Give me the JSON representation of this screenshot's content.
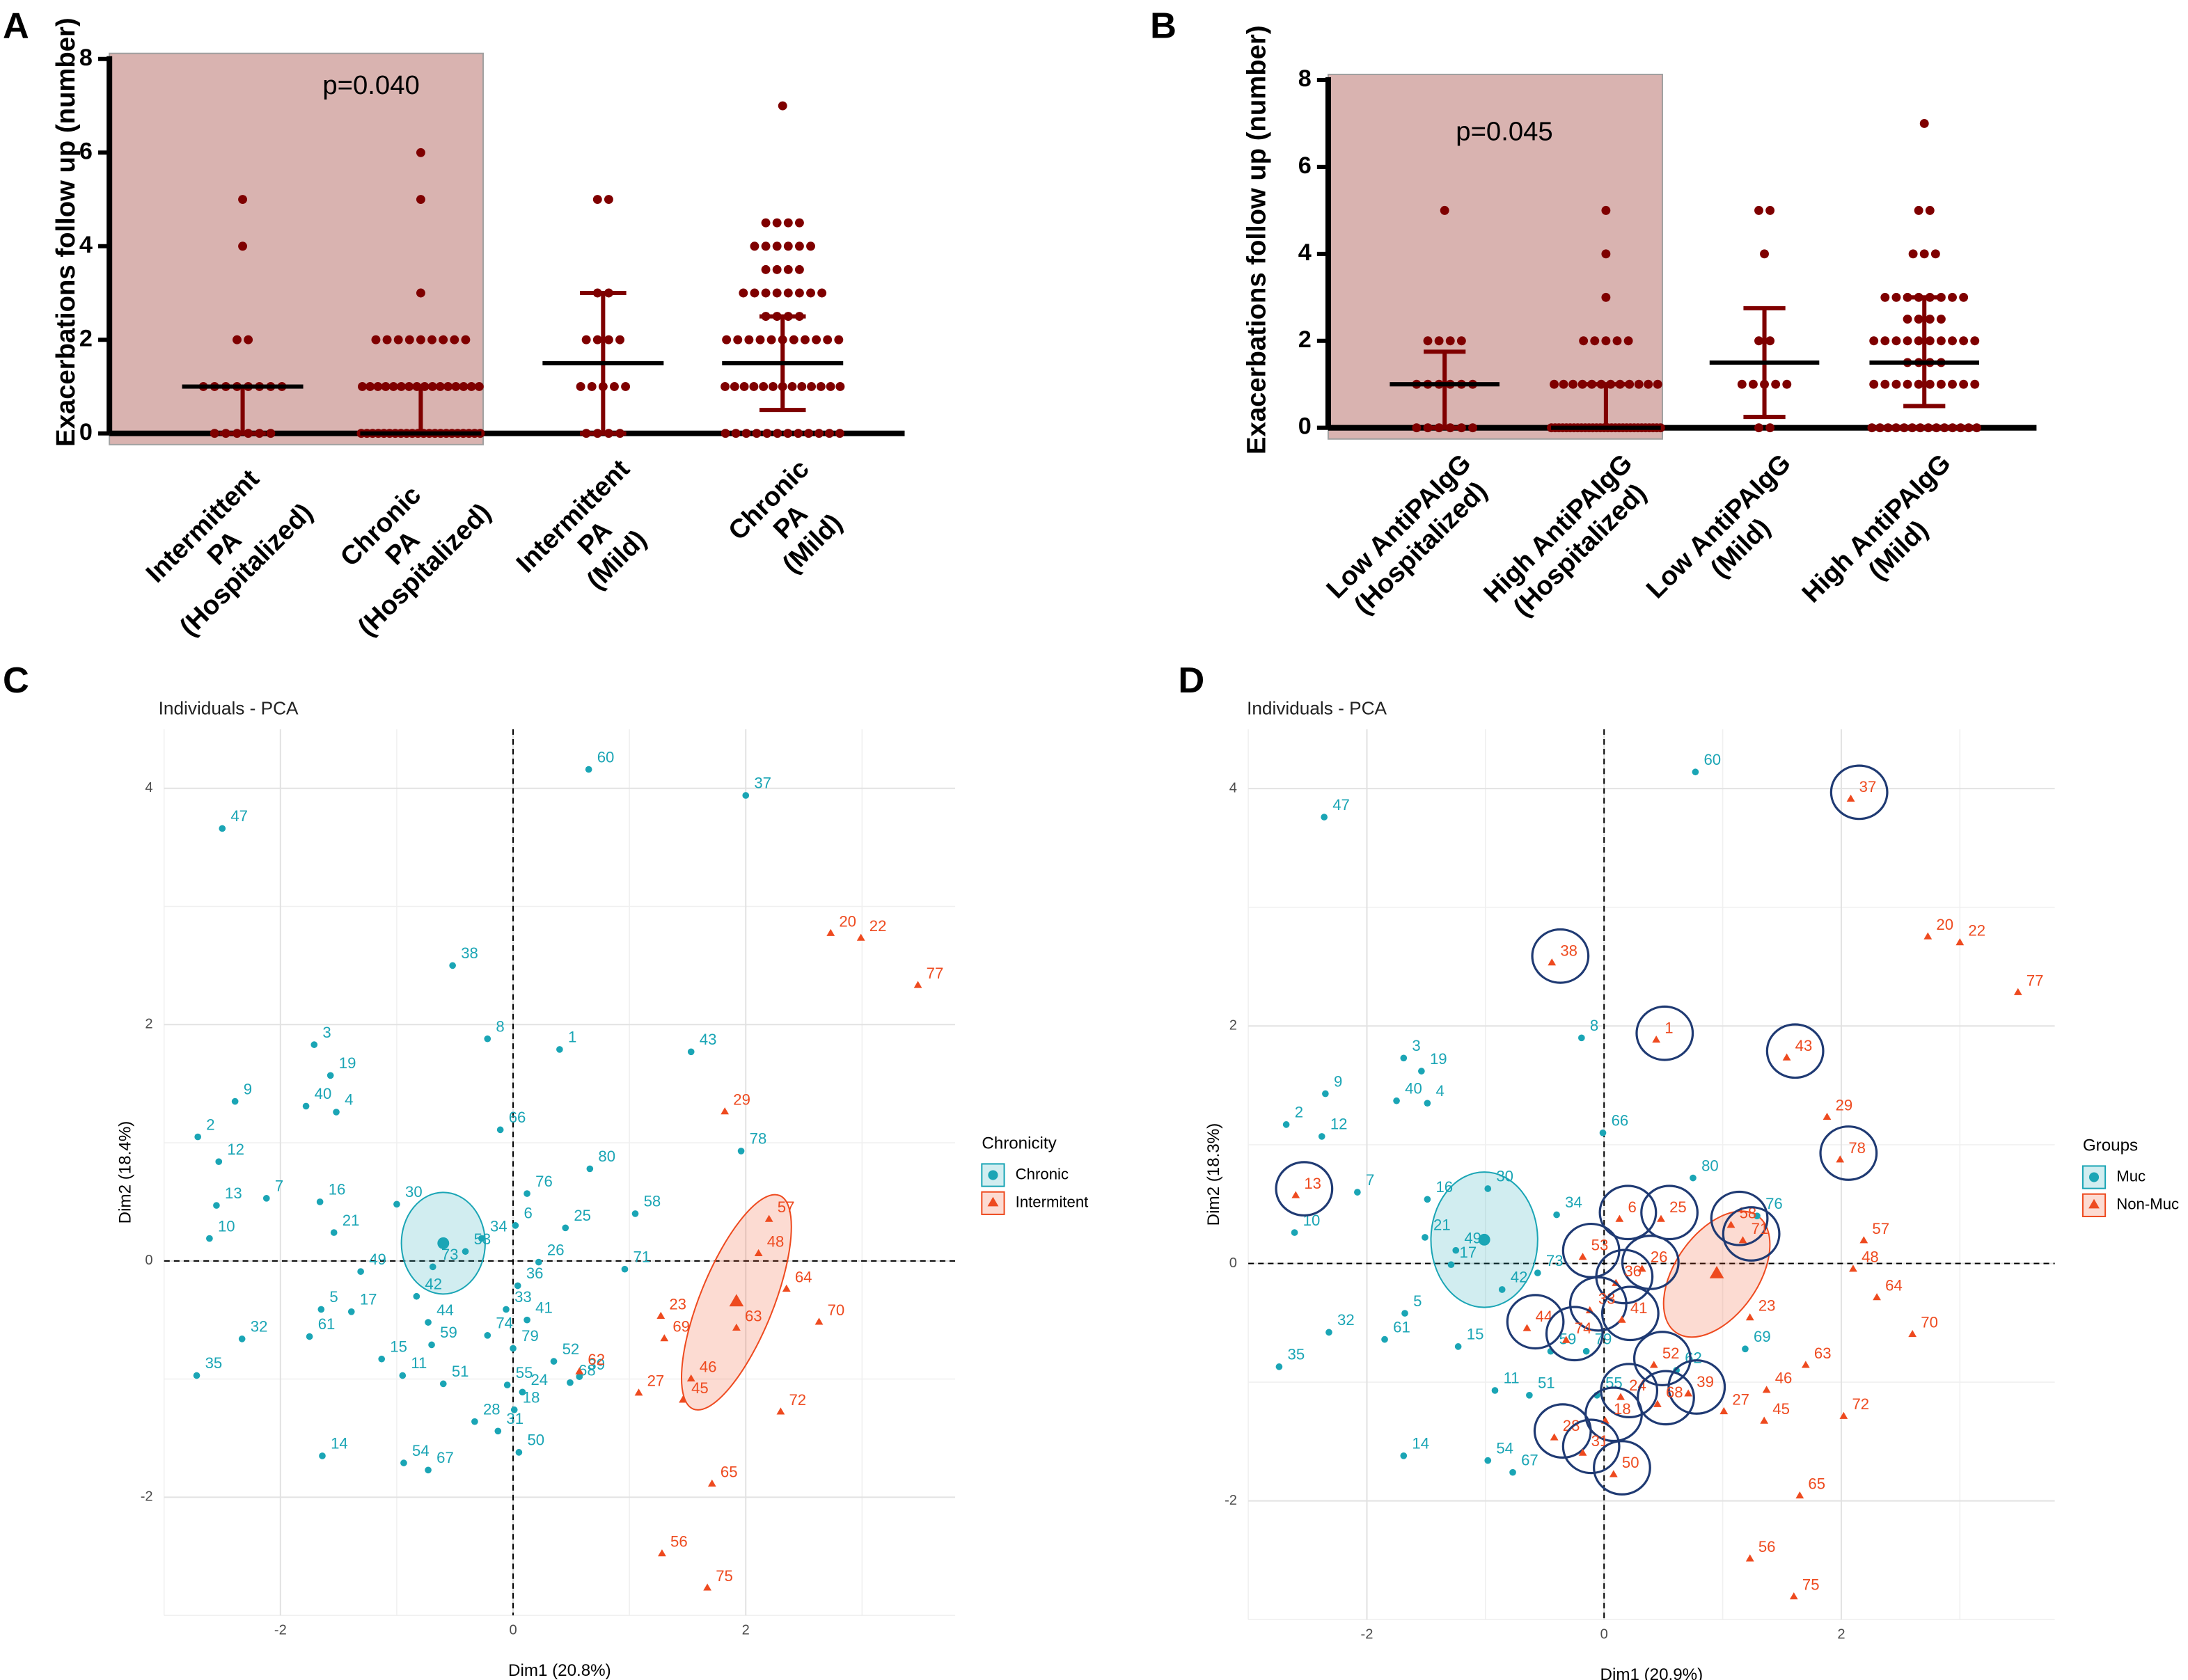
{
  "chart_data": [
    {
      "type": "dotplot",
      "panel_label": "A",
      "ylabel": "Exacerbations  follow up (number)",
      "annotation": "p=0.040",
      "categories": [
        [
          "Intermittent",
          "PA",
          "(Hospitalized)"
        ],
        [
          "Chronic",
          "PA",
          "(Hospitalized)"
        ],
        [
          "Intermittent",
          "PA",
          "(Mild)"
        ],
        [
          "Chronic",
          "PA",
          "(Mild)"
        ]
      ],
      "values": [
        [
          0,
          0,
          0,
          0,
          0,
          0,
          1,
          1,
          1,
          1,
          1,
          1,
          1,
          1,
          2,
          2,
          4,
          5
        ],
        [
          0,
          0,
          0,
          0,
          0,
          0,
          0,
          0,
          0,
          0,
          0,
          0,
          0,
          0,
          0,
          0,
          0,
          0,
          0,
          0,
          0,
          0,
          1,
          1,
          1,
          1,
          1,
          1,
          1,
          1,
          1,
          1,
          1,
          1,
          1,
          1,
          1,
          1,
          2,
          2,
          2,
          2,
          2,
          2,
          2,
          2,
          2,
          3,
          5,
          6
        ],
        [
          0,
          0,
          0,
          0,
          1,
          1,
          1,
          1,
          1,
          2,
          2,
          2,
          2,
          3,
          3,
          5,
          5
        ],
        [
          0,
          0,
          0,
          0,
          0,
          0,
          0,
          0,
          0,
          0,
          0,
          0,
          1,
          1,
          1,
          1,
          1,
          1,
          1,
          1,
          1,
          1,
          1,
          1,
          1,
          2,
          2,
          2,
          2,
          2,
          2,
          2,
          2,
          2,
          2,
          2,
          2.5,
          2.5,
          2.5,
          2.5,
          3,
          3,
          3,
          3,
          3,
          3,
          3,
          3,
          3.5,
          3.5,
          3.5,
          3.5,
          4,
          4,
          4,
          4,
          4,
          4,
          4.5,
          4.5,
          4.5,
          4.5,
          7
        ]
      ],
      "center": [
        1,
        0,
        1.5,
        1.5
      ],
      "lower": [
        0,
        0,
        0,
        0.5
      ],
      "upper": [
        1,
        1,
        3,
        2.5
      ],
      "ylim": [
        0,
        8
      ],
      "yticks": [
        0,
        2,
        4,
        6,
        8
      ],
      "color": "#7f0000",
      "highlighted": [
        true,
        true,
        false,
        false
      ],
      "highlight_color": "#d9b3b0"
    },
    {
      "type": "dotplot",
      "panel_label": "B",
      "ylabel": "Exacerbations  follow up (number)",
      "annotation": "p=0.045",
      "categories": [
        [
          "Low AntiPAIgG",
          "(Hospitalized)"
        ],
        [
          "High AntiPAIgG",
          "(Hospitalized)"
        ],
        [
          "Low AntiPAIgG",
          "(Mild)"
        ],
        [
          "High AntiPAIgG",
          "(Mild)"
        ]
      ],
      "values": [
        [
          0,
          0,
          0,
          0,
          0,
          0,
          1,
          1,
          1,
          1,
          1,
          1,
          2,
          2,
          2,
          2,
          5
        ],
        [
          0,
          0,
          0,
          0,
          0,
          0,
          0,
          0,
          0,
          0,
          0,
          0,
          0,
          0,
          0,
          0,
          0,
          0,
          0,
          0,
          0,
          0,
          0,
          0,
          0,
          0,
          0,
          0,
          0,
          0,
          1,
          1,
          1,
          1,
          1,
          1,
          1,
          1,
          1,
          1,
          1,
          1,
          2,
          2,
          2,
          2,
          2,
          3,
          4,
          5
        ],
        [
          0,
          0,
          1,
          1,
          1,
          1,
          1,
          2,
          2,
          4,
          5,
          5
        ],
        [
          0,
          0,
          0,
          0,
          0,
          0,
          0,
          0,
          0,
          0,
          0,
          0,
          0,
          0,
          1,
          1,
          1,
          1,
          1,
          1,
          1,
          1,
          1,
          1,
          1.5,
          1.5,
          1.5,
          1.5,
          2,
          2,
          2,
          2,
          2,
          2,
          2,
          2,
          2,
          2,
          2.5,
          2.5,
          2.5,
          2.5,
          3,
          3,
          3,
          3,
          3,
          3,
          3,
          3,
          4,
          4,
          4,
          5,
          5,
          7
        ]
      ],
      "center": [
        1,
        0,
        1.5,
        1.5
      ],
      "lower": [
        0,
        0,
        0.25,
        0.5
      ],
      "upper": [
        1.75,
        1,
        2.75,
        3
      ],
      "ylim": [
        0,
        8
      ],
      "yticks": [
        0,
        2,
        4,
        6,
        8
      ],
      "color": "#7f0000",
      "highlighted": [
        true,
        true,
        false,
        false
      ],
      "highlight_color": "#d9b3b0"
    },
    {
      "type": "pca",
      "panel_label": "C",
      "title": "Individuals - PCA",
      "xlabel": "Dim1 (20.8%)",
      "ylabel": "Dim2 (18.4%)",
      "legend_title": "Chronicity",
      "series": [
        {
          "name": "Chronic",
          "color": "#1aa5b5",
          "marker": "circle",
          "labels": [
            "60",
            "47",
            "37",
            "38",
            "8",
            "1",
            "43",
            "3",
            "19",
            "40",
            "4",
            "9",
            "2",
            "66",
            "78",
            "12",
            "7",
            "13",
            "16",
            "30",
            "10",
            "21",
            "76",
            "80",
            "58",
            "6",
            "25",
            "34",
            "53",
            "26",
            "73",
            "71",
            "49",
            "36",
            "42",
            "5",
            "17",
            "33",
            "44",
            "41",
            "61",
            "15",
            "74",
            "79",
            "59",
            "52",
            "32",
            "35",
            "55",
            "24",
            "68",
            "39",
            "11",
            "51",
            "18",
            "28",
            "31",
            "14",
            "54",
            "67",
            "50"
          ],
          "x": [
            0.65,
            -2.5,
            2.0,
            -0.52,
            -0.22,
            0.4,
            1.53,
            -1.71,
            -1.57,
            -1.78,
            -1.52,
            -2.39,
            -2.71,
            -0.11,
            1.96,
            -2.53,
            -2.12,
            -2.55,
            -1.66,
            -1.0,
            -2.61,
            -1.54,
            0.12,
            0.66,
            1.05,
            0.02,
            0.45,
            -0.27,
            -0.41,
            0.22,
            -0.69,
            0.96,
            -1.31,
            0.04,
            -0.83,
            -1.65,
            -1.39,
            -0.06,
            -0.73,
            0.12,
            -1.75,
            -1.13,
            -0.22,
            0,
            -0.7,
            0.35,
            -2.33,
            -2.72,
            -0.05,
            0.08,
            0.49,
            0.57,
            -0.95,
            -0.6,
            0.01,
            -0.33,
            -0.13,
            -1.64,
            -0.94,
            -0.73,
            0.05
          ],
          "y": [
            4.16,
            3.66,
            3.94,
            2.5,
            1.88,
            1.79,
            1.77,
            1.83,
            1.57,
            1.31,
            1.26,
            1.35,
            1.05,
            1.11,
            0.93,
            0.84,
            0.53,
            0.47,
            0.5,
            0.48,
            0.19,
            0.24,
            0.57,
            0.78,
            0.4,
            0.3,
            0.28,
            0.19,
            0.08,
            -0.01,
            -0.05,
            -0.07,
            -0.09,
            -0.21,
            -0.3,
            -0.41,
            -0.43,
            -0.41,
            -0.52,
            -0.5,
            -0.64,
            -0.83,
            -0.63,
            -0.74,
            -0.71,
            -0.85,
            -0.66,
            -0.97,
            -1.05,
            -1.11,
            -1.03,
            -0.98,
            -0.97,
            -1.04,
            -1.26,
            -1.36,
            -1.44,
            -1.65,
            -1.71,
            -1.77,
            -1.62
          ],
          "centroid": [
            -0.6,
            0.15
          ],
          "ellipse": {
            "rx": 0.36,
            "ry": 0.43,
            "angle": 0
          }
        },
        {
          "name": "Intermitent",
          "color": "#ee4a1f",
          "marker": "triangle",
          "labels": [
            "20",
            "22",
            "77",
            "29",
            "57",
            "48",
            "64",
            "70",
            "23",
            "69",
            "62",
            "63",
            "46",
            "27",
            "45",
            "72",
            "65",
            "56",
            "75"
          ],
          "x": [
            2.73,
            2.99,
            3.48,
            1.82,
            2.2,
            2.11,
            2.35,
            2.63,
            1.27,
            1.3,
            0.57,
            1.92,
            1.53,
            1.08,
            1.46,
            2.3,
            1.71,
            1.28,
            1.67
          ],
          "y": [
            2.77,
            2.73,
            2.33,
            1.26,
            0.35,
            0.06,
            -0.24,
            -0.52,
            -0.47,
            -0.66,
            -0.94,
            -0.57,
            -1.0,
            -1.12,
            -1.18,
            -1.28,
            -1.89,
            -2.48,
            -2.77
          ],
          "centroid": [
            1.92,
            -0.35
          ],
          "ellipse": {
            "rx": 0.99,
            "ry": 0.31,
            "angle": -68
          }
        }
      ],
      "xlim": [
        -3,
        3.8
      ],
      "ylim": [
        -3,
        4.5
      ],
      "xticks": [
        -2,
        0,
        2
      ],
      "yticks": [
        -2,
        0,
        2,
        4
      ],
      "grid": true
    },
    {
      "type": "pca",
      "panel_label": "D",
      "title": "Individuals - PCA",
      "xlabel": "Dim1 (20.9%)",
      "ylabel": "Dim2 (18.3%)",
      "legend_title": "Groups",
      "series": [
        {
          "name": "Muc",
          "color": "#1aa5b5",
          "marker": "circle",
          "labels": [
            "60",
            "47",
            "8",
            "3",
            "19",
            "9",
            "40",
            "4",
            "2",
            "12",
            "66",
            "7",
            "16",
            "80",
            "30",
            "10",
            "76",
            "21",
            "49",
            "17",
            "34",
            "73",
            "42",
            "5",
            "32",
            "15",
            "61",
            "35",
            "59",
            "79",
            "69",
            "62",
            "11",
            "51",
            "55",
            "14",
            "54",
            "67"
          ],
          "x": [
            0.77,
            -2.36,
            -0.19,
            -1.69,
            -1.54,
            -2.35,
            -1.75,
            -1.49,
            -2.68,
            -2.38,
            -0.01,
            -2.08,
            -1.49,
            0.75,
            -0.98,
            -2.61,
            1.29,
            -1.51,
            -1.25,
            -1.29,
            -0.4,
            -0.56,
            -0.86,
            -1.68,
            -2.32,
            -1.23,
            -1.85,
            -2.74,
            -0.45,
            -0.15,
            1.19,
            0.61,
            -0.92,
            -0.63,
            -0.06,
            -1.69,
            -0.98,
            -0.77
          ],
          "y": [
            4.14,
            3.76,
            1.9,
            1.73,
            1.62,
            1.43,
            1.37,
            1.35,
            1.17,
            1.07,
            1.1,
            0.6,
            0.54,
            0.72,
            0.63,
            0.26,
            0.4,
            0.22,
            0.11,
            -0.01,
            0.41,
            -0.08,
            -0.22,
            -0.42,
            -0.58,
            -0.7,
            -0.64,
            -0.87,
            -0.74,
            -0.74,
            -0.72,
            -0.9,
            -1.07,
            -1.11,
            -1.11,
            -1.62,
            -1.66,
            -1.76
          ],
          "centroid": [
            -1.01,
            0.2
          ],
          "ellipse": {
            "rx": 0.45,
            "ry": 0.57,
            "angle": 0
          }
        },
        {
          "name": "Non-Muc",
          "color": "#ee4a1f",
          "marker": "triangle",
          "labels": [
            "37",
            "38",
            "1",
            "43",
            "20",
            "22",
            "77",
            "29",
            "78",
            "13",
            "6",
            "25",
            "58",
            "71",
            "57",
            "53",
            "26",
            "48",
            "36",
            "64",
            "23",
            "33",
            "41",
            "70",
            "44",
            "74",
            "63",
            "52",
            "46",
            "24",
            "39",
            "68",
            "27",
            "45",
            "72",
            "28",
            "18",
            "31",
            "50",
            "65",
            "56",
            "75"
          ],
          "x": [
            2.08,
            -0.44,
            0.44,
            1.54,
            2.73,
            3.0,
            3.49,
            1.88,
            1.99,
            -2.6,
            0.13,
            0.48,
            1.07,
            1.17,
            2.19,
            -0.18,
            0.32,
            2.1,
            0.1,
            2.3,
            1.23,
            -0.12,
            0.15,
            2.6,
            -0.65,
            -0.32,
            1.7,
            0.42,
            1.37,
            0.14,
            0.71,
            0.45,
            1.01,
            1.35,
            2.02,
            -0.42,
            0.01,
            -0.18,
            0.08,
            1.65,
            1.23,
            1.6
          ],
          "y": [
            3.91,
            2.53,
            1.88,
            1.73,
            2.75,
            2.7,
            2.28,
            1.23,
            0.87,
            0.57,
            0.37,
            0.37,
            0.32,
            0.19,
            0.19,
            0.05,
            -0.05,
            -0.05,
            -0.17,
            -0.29,
            -0.46,
            -0.4,
            -0.48,
            -0.6,
            -0.55,
            -0.65,
            -0.86,
            -0.86,
            -1.07,
            -1.13,
            -1.1,
            -1.19,
            -1.25,
            -1.33,
            -1.29,
            -1.47,
            -1.33,
            -1.6,
            -1.78,
            -1.96,
            -2.49,
            -2.81
          ],
          "circled": [
            true,
            true,
            true,
            true,
            false,
            false,
            false,
            false,
            true,
            true,
            true,
            true,
            true,
            true,
            false,
            true,
            true,
            false,
            true,
            false,
            false,
            true,
            true,
            false,
            true,
            true,
            false,
            true,
            false,
            true,
            true,
            true,
            false,
            false,
            false,
            true,
            true,
            true,
            true,
            false,
            false,
            false
          ],
          "circle_color": "#1f3a73",
          "centroid": [
            0.95,
            -0.09
          ],
          "ellipse": {
            "rx": 0.6,
            "ry": 0.35,
            "angle": -55
          }
        }
      ],
      "xlim": [
        -3,
        3.8
      ],
      "ylim": [
        -3,
        4.5
      ],
      "xticks": [
        -2,
        0,
        2
      ],
      "yticks": [
        -2,
        0,
        2,
        4
      ],
      "grid": true
    }
  ]
}
